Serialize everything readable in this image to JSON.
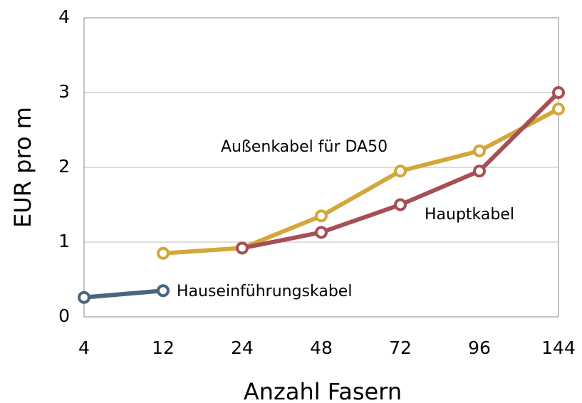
{
  "chart_data": {
    "type": "line",
    "x_label": "Anzahl Fasern",
    "y_label": "EUR pro m",
    "categories": [
      "4",
      "12",
      "24",
      "48",
      "72",
      "96",
      "144"
    ],
    "series": [
      {
        "name": "Hauseinführungskabel",
        "color": "#4a6580",
        "values": [
          0.26,
          0.35,
          null,
          null,
          null,
          null,
          null
        ]
      },
      {
        "name": "Außenkabel für DA50",
        "color": "#d4a73a",
        "values": [
          null,
          0.85,
          0.92,
          1.35,
          1.95,
          2.22,
          2.78
        ]
      },
      {
        "name": "Hauptkabel",
        "color": "#a64f55",
        "values": [
          null,
          null,
          0.92,
          1.13,
          1.5,
          1.95,
          3.0
        ]
      }
    ],
    "ylim": [
      0,
      4
    ],
    "yticks": [
      0,
      1,
      2,
      3,
      4
    ],
    "grid": true
  }
}
